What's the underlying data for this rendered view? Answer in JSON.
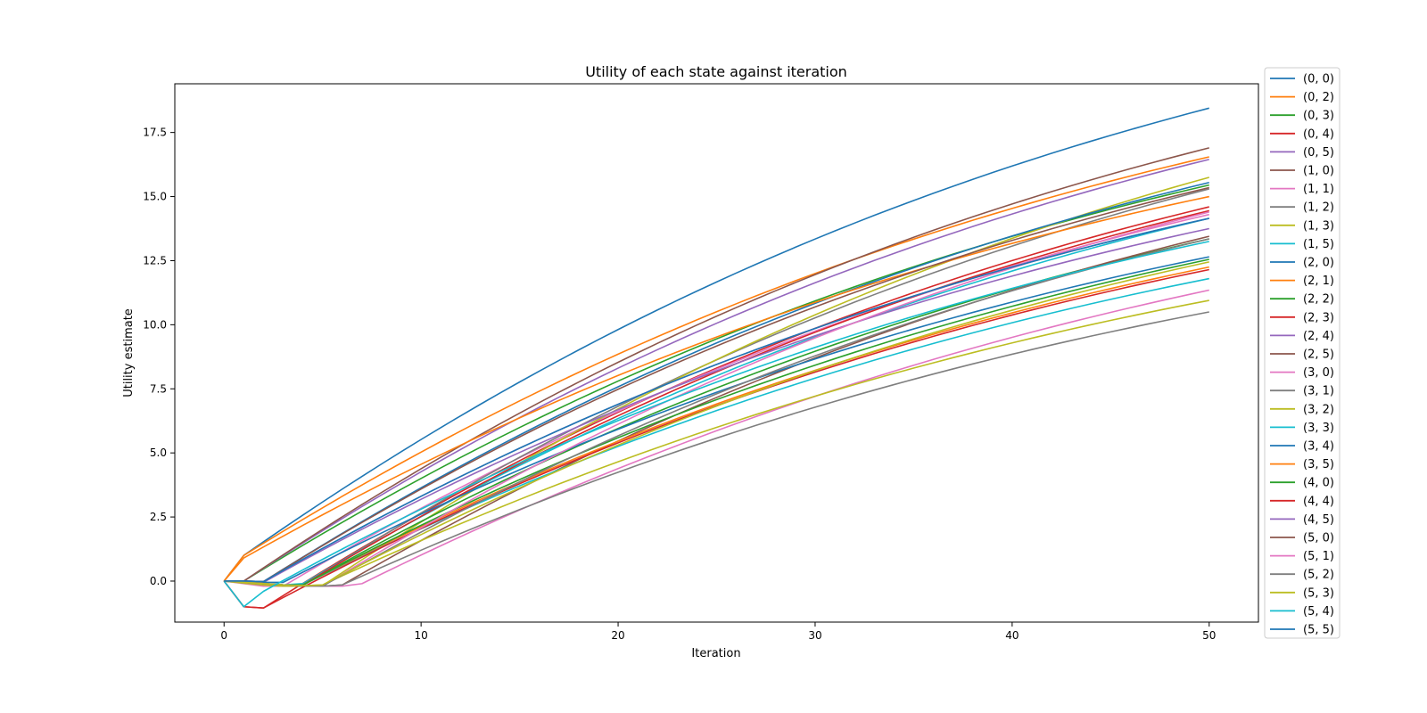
{
  "chart_data": {
    "type": "line",
    "title": "Utility of each state against iteration",
    "xlabel": "Iteration",
    "ylabel": "Utility estimate",
    "xlim": [
      -2.5,
      52.5
    ],
    "ylim": [
      -1.6,
      19.4
    ],
    "xticks": [
      0,
      10,
      20,
      30,
      40,
      50
    ],
    "xtick_labels": [
      "0",
      "10",
      "20",
      "30",
      "40",
      "50"
    ],
    "yticks": [
      0,
      2.5,
      5,
      7.5,
      10,
      12.5,
      15,
      17.5
    ],
    "ytick_labels": [
      "0.0",
      "2.5",
      "5.0",
      "7.5",
      "10.0",
      "12.5",
      "15.0",
      "17.5"
    ],
    "grid": false,
    "legend_position": "outside-right",
    "x": [
      0,
      1,
      2,
      3,
      4,
      5,
      6,
      7,
      8,
      9,
      10,
      11,
      12,
      13,
      14,
      15,
      16,
      17,
      18,
      19,
      20,
      21,
      22,
      23,
      24,
      25,
      26,
      27,
      28,
      29,
      30,
      31,
      32,
      33,
      34,
      35,
      36,
      37,
      38,
      39,
      40,
      41,
      42,
      43,
      44,
      45,
      46,
      47,
      48,
      49,
      50
    ],
    "series": [
      {
        "name": "(0, 0)",
        "color": "#1f77b4",
        "start": [
          0,
          1.0
        ],
        "onset": 1,
        "final": 18.45
      },
      {
        "name": "(0, 2)",
        "color": "#ff7f0e",
        "start": [
          0,
          1.0
        ],
        "onset": 1,
        "final": 16.55
      },
      {
        "name": "(0, 3)",
        "color": "#2ca02c",
        "start": [
          0,
          0.0
        ],
        "onset": 1,
        "final": 15.45
      },
      {
        "name": "(0, 4)",
        "color": "#d62728",
        "start": [
          0,
          -1.0,
          -1.05
        ],
        "onset": 2,
        "final": 14.6
      },
      {
        "name": "(0, 5)",
        "color": "#9467bd",
        "start": [
          0,
          0.0
        ],
        "onset": 1,
        "final": 16.45
      },
      {
        "name": "(1, 0)",
        "color": "#8c564b",
        "start": [
          0,
          0.0
        ],
        "onset": 1,
        "final": 16.9
      },
      {
        "name": "(1, 1)",
        "color": "#e377c2",
        "start": [
          0,
          -0.1,
          -0.2,
          -0.2
        ],
        "onset": 3,
        "final": 14.3
      },
      {
        "name": "(1, 2)",
        "color": "#7f7f7f",
        "start": [
          0,
          -0.05,
          -0.1,
          -0.15,
          -0.18
        ],
        "onset": 4,
        "final": 15.3
      },
      {
        "name": "(1, 3)",
        "color": "#bcbd22",
        "start": [
          0,
          -0.08,
          -0.15,
          -0.2,
          -0.2,
          -0.18
        ],
        "onset": 5,
        "final": 15.75
      },
      {
        "name": "(1, 5)",
        "color": "#17becf",
        "start": [
          0,
          -0.05,
          -0.1,
          -0.15,
          -0.1
        ],
        "onset": 4,
        "final": 14.15
      },
      {
        "name": "(2, 0)",
        "color": "#1f77b4",
        "start": [
          0,
          0.0,
          -0.02
        ],
        "onset": 2,
        "final": 15.55
      },
      {
        "name": "(2, 1)",
        "color": "#ff7f0e",
        "start": [
          0,
          0.9
        ],
        "onset": 1,
        "final": 15.0
      },
      {
        "name": "(2, 2)",
        "color": "#2ca02c",
        "start": [
          0,
          -0.05,
          -0.1,
          -0.15,
          -0.15
        ],
        "onset": 4,
        "final": 13.35
      },
      {
        "name": "(2, 3)",
        "color": "#d62728",
        "start": [
          0,
          -0.05,
          -0.1,
          -0.15,
          -0.15
        ],
        "onset": 4,
        "final": 14.45
      },
      {
        "name": "(2, 4)",
        "color": "#9467bd",
        "start": [
          0,
          -0.02,
          -0.05
        ],
        "onset": 2,
        "final": 13.75
      },
      {
        "name": "(2, 5)",
        "color": "#8c564b",
        "start": [
          0,
          -0.05,
          -0.1,
          -0.15,
          -0.2,
          -0.2,
          -0.15
        ],
        "onset": 6,
        "final": 13.45
      },
      {
        "name": "(3, 0)",
        "color": "#e377c2",
        "start": [
          0,
          -0.05,
          -0.1,
          -0.15,
          -0.18,
          -0.2,
          -0.2,
          -0.1
        ],
        "onset": 7,
        "final": 11.35
      },
      {
        "name": "(3, 1)",
        "color": "#7f7f7f",
        "start": [
          0,
          -0.05,
          -0.1,
          -0.15,
          -0.2,
          -0.2,
          -0.15
        ],
        "onset": 6,
        "final": 10.5
      },
      {
        "name": "(3, 2)",
        "color": "#bcbd22",
        "start": [
          0,
          -0.05,
          -0.1,
          -0.15,
          -0.18,
          -0.15
        ],
        "onset": 5,
        "final": 10.95
      },
      {
        "name": "(3, 3)",
        "color": "#17becf",
        "start": [
          0,
          -0.05,
          -0.1,
          -0.15,
          -0.15
        ],
        "onset": 4,
        "final": 11.8
      },
      {
        "name": "(3, 4)",
        "color": "#1f77b4",
        "start": [
          0,
          -0.02,
          -0.05,
          -0.05
        ],
        "onset": 3,
        "final": 12.65
      },
      {
        "name": "(3, 5)",
        "color": "#ff7f0e",
        "start": [
          0,
          -0.05,
          -0.1,
          -0.15,
          -0.15
        ],
        "onset": 4,
        "final": 12.25
      },
      {
        "name": "(4, 0)",
        "color": "#2ca02c",
        "start": [
          0,
          -0.05,
          -0.1,
          -0.15,
          -0.15
        ],
        "onset": 4,
        "final": 12.55
      },
      {
        "name": "(4, 4)",
        "color": "#d62728",
        "start": [
          0,
          -1.0,
          -1.05
        ],
        "onset": 2,
        "final": 12.15
      },
      {
        "name": "(4, 5)",
        "color": "#9467bd",
        "start": [
          0,
          0.0,
          -0.02
        ],
        "onset": 2,
        "final": 14.15
      },
      {
        "name": "(5, 0)",
        "color": "#8c564b",
        "start": [
          0,
          0.0,
          -0.02
        ],
        "onset": 2,
        "final": 15.35
      },
      {
        "name": "(5, 1)",
        "color": "#e377c2",
        "start": [
          0,
          -0.05,
          -0.1,
          -0.15,
          -0.18,
          -0.2
        ],
        "onset": 5,
        "final": 14.4
      },
      {
        "name": "(5, 2)",
        "color": "#7f7f7f",
        "start": [
          0,
          -0.05,
          -0.1,
          -0.15,
          -0.18,
          -0.2
        ],
        "onset": 5,
        "final": 13.35
      },
      {
        "name": "(5, 3)",
        "color": "#bcbd22",
        "start": [
          0,
          -0.05,
          -0.1,
          -0.15,
          -0.18,
          -0.15
        ],
        "onset": 5,
        "final": 12.45
      },
      {
        "name": "(5, 4)",
        "color": "#17becf",
        "start": [
          0,
          -1.0,
          -0.4
        ],
        "onset": 2,
        "final": 13.25
      },
      {
        "name": "(5, 5)",
        "color": "#1f77b4",
        "start": [
          0,
          0.0,
          -0.02
        ],
        "onset": 2,
        "final": 14.15
      }
    ]
  }
}
